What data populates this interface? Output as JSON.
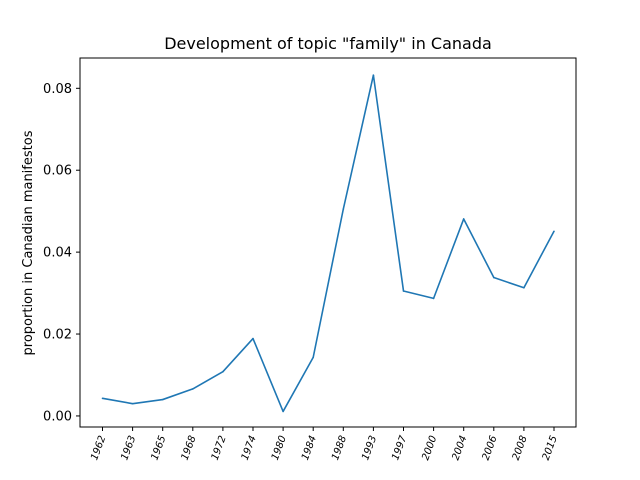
{
  "chart_data": {
    "type": "line",
    "title": "Development of topic \"family\" in Canada",
    "xlabel": "",
    "ylabel": "proportion in Canadian manifestos",
    "categories": [
      "1962",
      "1963",
      "1965",
      "1968",
      "1972",
      "1974",
      "1980",
      "1984",
      "1988",
      "1993",
      "1997",
      "2000",
      "2004",
      "2006",
      "2008",
      "2015"
    ],
    "series": [
      {
        "values": [
          0.0043,
          0.003,
          0.004,
          0.0066,
          0.0108,
          0.0189,
          0.0011,
          0.0143,
          0.0505,
          0.0832,
          0.0305,
          0.0287,
          0.0481,
          0.0338,
          0.0313,
          0.0451
        ],
        "color": "#1f77b4"
      }
    ],
    "yticks": [
      "0.00",
      "0.02",
      "0.04",
      "0.06",
      "0.08"
    ],
    "ylim": [
      -0.0027,
      0.0874
    ],
    "grid": false,
    "legend": "none"
  }
}
